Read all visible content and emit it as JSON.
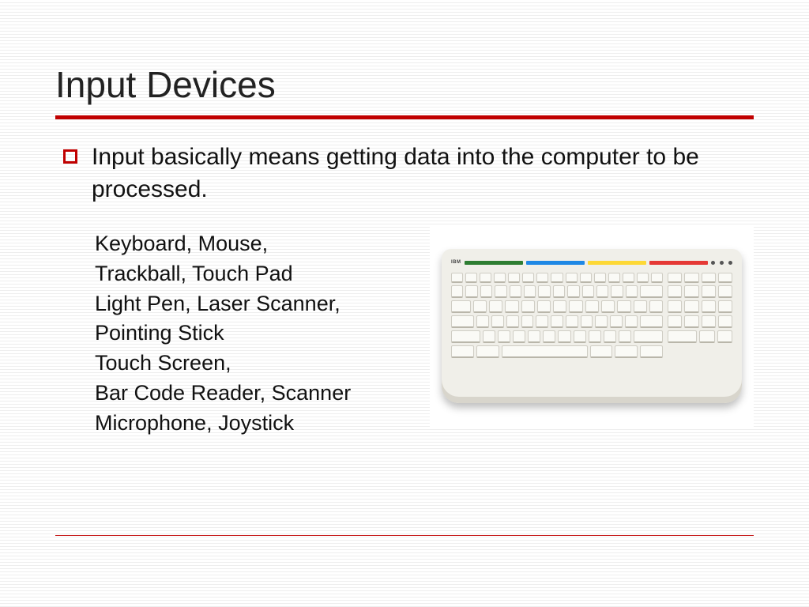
{
  "colors": {
    "accent": "#c00000",
    "text": "#111111",
    "background_white": "#ffffff",
    "stripe_gray": "#eeeeee",
    "keyboard_body": "#f0efe9",
    "key_face": "#fafaf6",
    "key_border": "#cfcdc4",
    "stripes": [
      "#2e7d32",
      "#1e88e5",
      "#fdd835",
      "#e53935"
    ]
  },
  "title": "Input Devices",
  "bullet": "Input basically means getting data into the computer to be processed.",
  "device_lines": [
    "Keyboard, Mouse,",
    "Trackball, Touch Pad",
    "Light Pen, Laser Scanner,",
    "Pointing Stick",
    "Touch Screen,",
    "Bar Code Reader, Scanner",
    "Microphone, Joystick"
  ],
  "keyboard": {
    "logo": "IBM",
    "led_count": 3,
    "function_keys": 15,
    "row2_keys": 14,
    "row3_keys": 13,
    "row4_keys": 13,
    "row5_keys": 12,
    "numpad_cols": 4,
    "numpad_rows": 5
  }
}
